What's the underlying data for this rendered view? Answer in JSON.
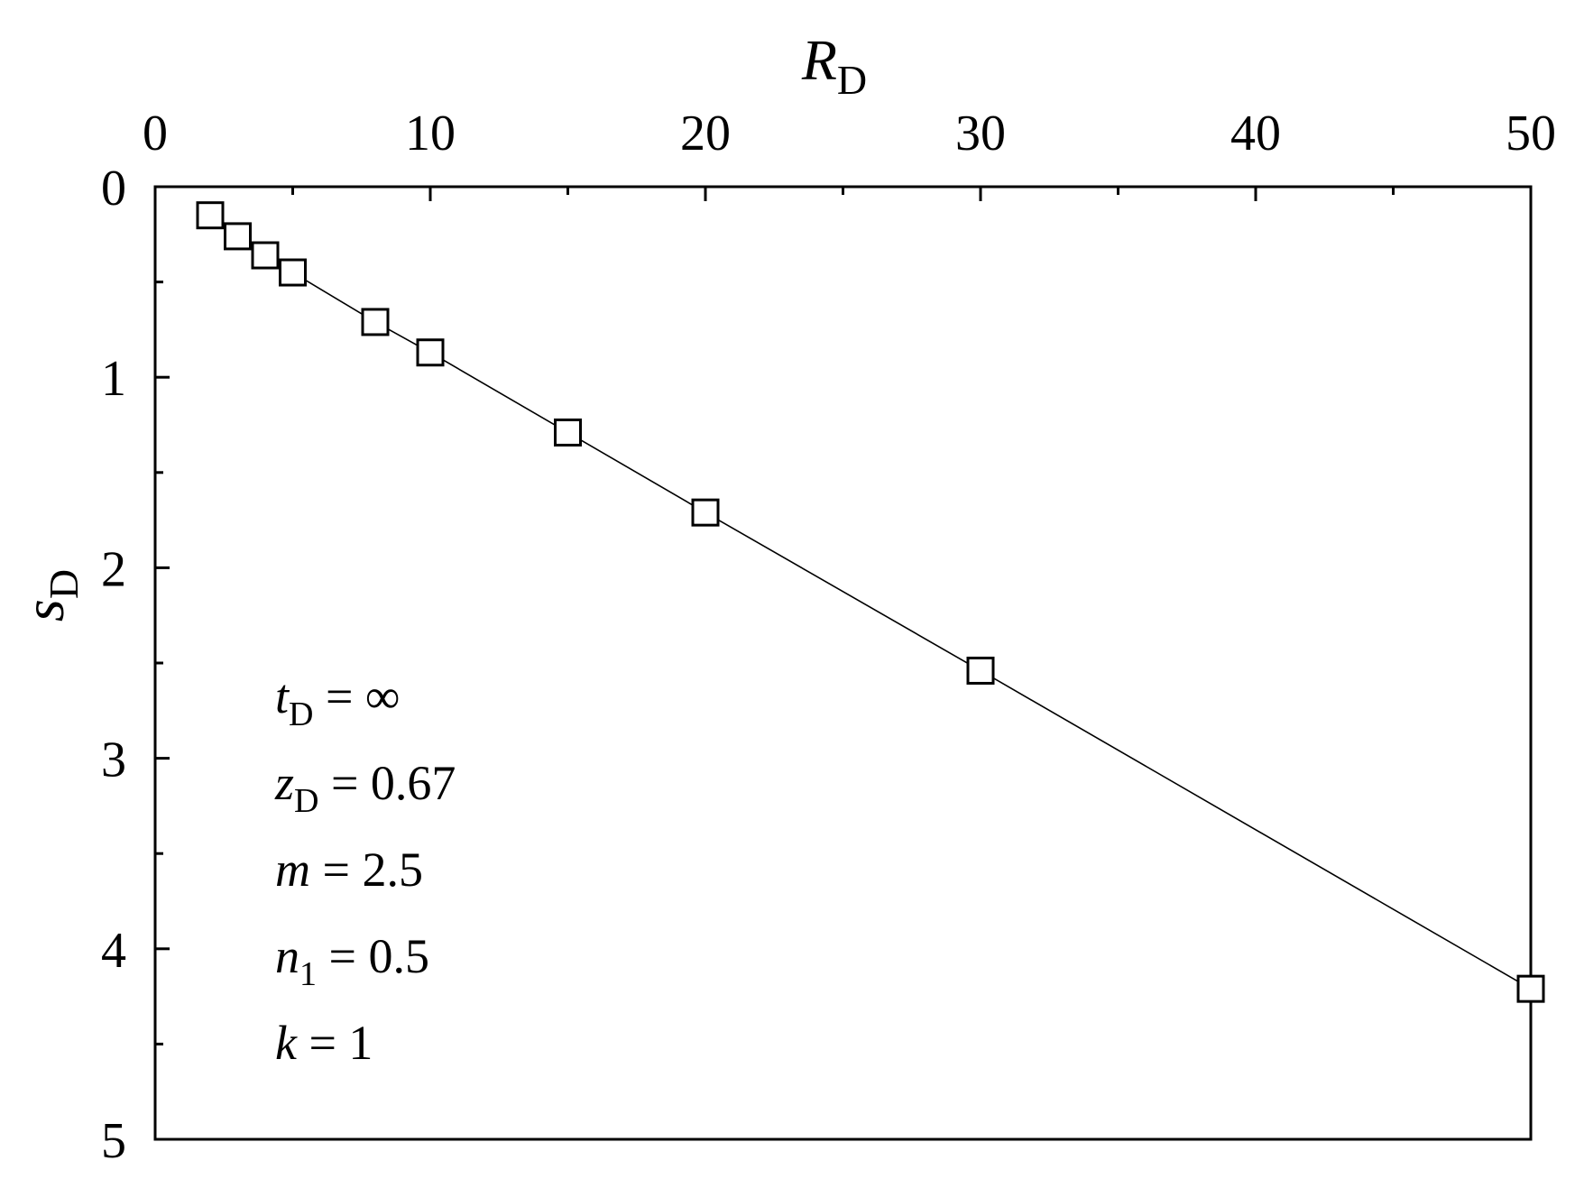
{
  "chart_data": {
    "type": "scatter",
    "x_axis": {
      "label_main": "R",
      "label_sub": "D",
      "position": "top",
      "range": [
        0,
        50
      ],
      "ticks": [
        "0",
        "10",
        "20",
        "30",
        "40",
        "50"
      ],
      "tick_values": [
        0,
        10,
        20,
        30,
        40,
        50
      ],
      "minor_tick_values": [
        5,
        15,
        25,
        35,
        45
      ]
    },
    "y_axis": {
      "label_main": "s",
      "label_sub": "D",
      "inverted": true,
      "range": [
        0,
        5
      ],
      "ticks": [
        "0",
        "1",
        "2",
        "3",
        "4",
        "5"
      ],
      "tick_values": [
        0,
        1,
        2,
        3,
        4,
        5
      ],
      "minor_tick_values": [
        0.5,
        1.5,
        2.5,
        3.5,
        4.5
      ]
    },
    "grid": false,
    "series": [
      {
        "marker": "open-square",
        "line": true,
        "points": [
          {
            "x": 2,
            "y": 0.15
          },
          {
            "x": 3,
            "y": 0.26
          },
          {
            "x": 4,
            "y": 0.36
          },
          {
            "x": 5,
            "y": 0.45
          },
          {
            "x": 8,
            "y": 0.71
          },
          {
            "x": 10,
            "y": 0.87
          },
          {
            "x": 15,
            "y": 1.29
          },
          {
            "x": 20,
            "y": 1.71
          },
          {
            "x": 30,
            "y": 2.54
          },
          {
            "x": 50,
            "y": 4.21
          }
        ]
      }
    ],
    "annotations": [
      {
        "var": "t",
        "sub": "D",
        "rest": " = ∞"
      },
      {
        "var": "z",
        "sub": "D",
        "rest": " = 0.67"
      },
      {
        "var": "m",
        "sub": "",
        "rest": " = 2.5"
      },
      {
        "var": "n",
        "sub": "1",
        "rest": " = 0.5"
      },
      {
        "var": "k",
        "sub": "",
        "rest": " = 1"
      }
    ]
  }
}
